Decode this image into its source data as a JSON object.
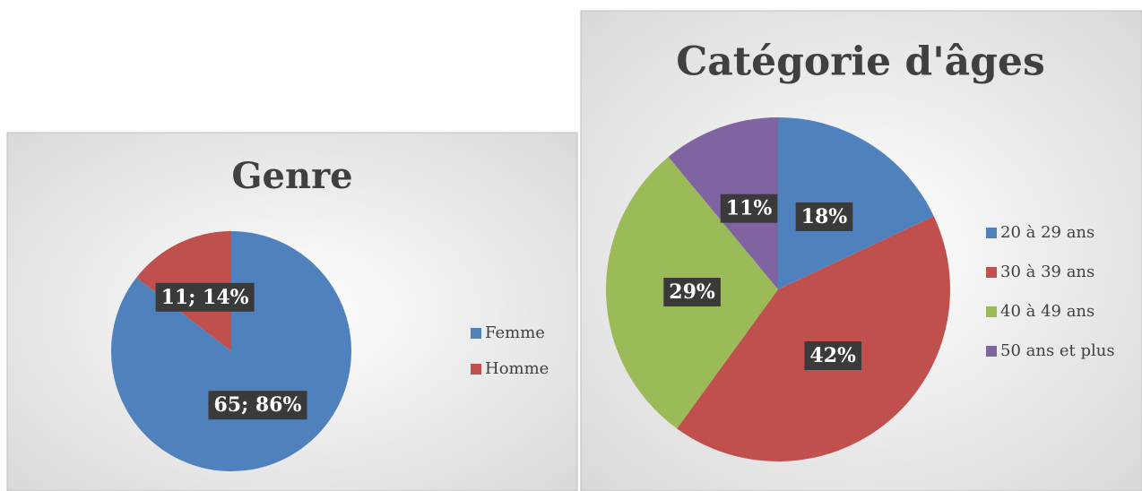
{
  "chart_data": [
    {
      "type": "pie",
      "title": "Genre",
      "categories": [
        "Femme",
        "Homme"
      ],
      "values": [
        65,
        11
      ],
      "value_labels": [
        "65; 86%",
        "11; 14%"
      ],
      "colors": [
        "#4f81bd",
        "#c0504d"
      ],
      "legend": "right"
    },
    {
      "type": "pie",
      "title": "Catégorie d'âges",
      "categories": [
        "20 à 29 ans",
        "30 à 39 ans",
        "40 à 49 ans",
        "50 ans et plus"
      ],
      "values": [
        18,
        42,
        29,
        11
      ],
      "value_labels": [
        "18%",
        "42%",
        "29%",
        "11%"
      ],
      "colors": [
        "#4f81bd",
        "#c0504d",
        "#9bbb59",
        "#8064a2"
      ],
      "legend": "right"
    }
  ]
}
